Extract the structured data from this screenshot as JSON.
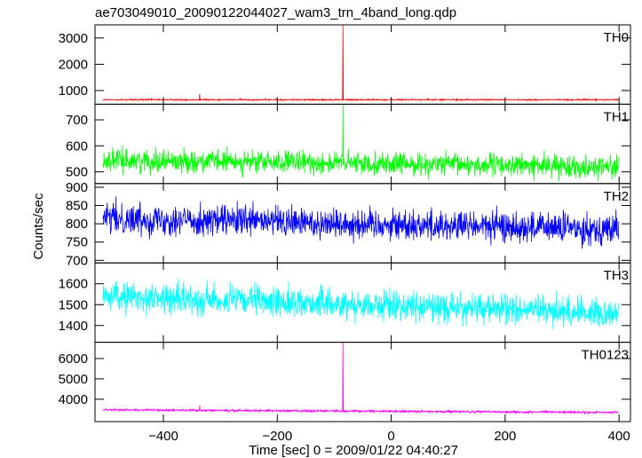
{
  "chart_data": {
    "type": "line",
    "title": "ae703049010_20090122044027_wam3_trn_4band_long.qdp",
    "xlabel": "Time [sec] 0 = 2009/01/22 04:40:27",
    "ylabel": "Counts/sec",
    "xlim": [
      -520,
      420
    ],
    "xticks": [
      -400,
      -200,
      0,
      200,
      400
    ],
    "data_x_range": [
      -506,
      400
    ],
    "grid": false,
    "panels": [
      {
        "name": "TH0",
        "color": "#ff0000",
        "ylim": [
          480,
          3500
        ],
        "yticks": [
          1000,
          2000,
          3000
        ],
        "baseline": 650,
        "noise": 20,
        "spikes": [
          {
            "x": -336,
            "y": 880
          },
          {
            "x": -85,
            "y": 3500
          }
        ]
      },
      {
        "name": "TH1",
        "color": "#00ff00",
        "ylim": [
          455,
          760
        ],
        "yticks": [
          500,
          600,
          700
        ],
        "baseline": 545,
        "baseline_end": 520,
        "noise": 30,
        "spikes": [
          {
            "x": -85,
            "y": 760
          }
        ]
      },
      {
        "name": "TH2",
        "color": "#0000ff",
        "ylim": [
          693,
          910
        ],
        "yticks": [
          700,
          750,
          800,
          850,
          900
        ],
        "baseline": 815,
        "baseline_end": 785,
        "noise": 30,
        "spikes": []
      },
      {
        "name": "TH3",
        "color": "#00ffff",
        "ylim": [
          1320,
          1700
        ],
        "yticks": [
          1400,
          1500,
          1600
        ],
        "baseline": 1540,
        "baseline_end": 1460,
        "noise": 50,
        "spikes": []
      },
      {
        "name": "TH0123",
        "color": "#ff00ff",
        "ylim": [
          2900,
          6800
        ],
        "yticks": [
          4000,
          5000,
          6000
        ],
        "baseline": 3480,
        "baseline_end": 3350,
        "noise": 40,
        "spikes": [
          {
            "x": -336,
            "y": 3700
          },
          {
            "x": -85,
            "y": 6800
          }
        ]
      }
    ]
  }
}
